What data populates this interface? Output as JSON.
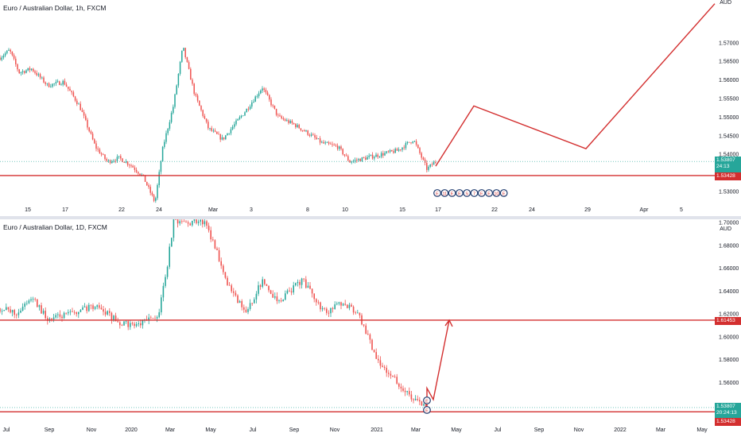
{
  "colors": {
    "up": "#26a69a",
    "down": "#ef5350",
    "line": "#d32f2f",
    "accent": "#26a69a",
    "text": "#131722"
  },
  "chart_data": [
    {
      "type": "line",
      "title": "Euro / Australian Dollar, 1h, FXCM",
      "unit": "AUD",
      "x_ticks": [
        "15",
        "17",
        "22",
        "24",
        "Mar",
        "3",
        "8",
        "10",
        "15",
        "17",
        "22",
        "24",
        "29",
        "Apr",
        "5"
      ],
      "y_ticks": [
        "1.57000",
        "1.56500",
        "1.56000",
        "1.55500",
        "1.55000",
        "1.54500",
        "1.54000",
        "1.53000"
      ],
      "ylim": [
        1.5255,
        1.5815
      ],
      "last_price": "1.53807",
      "countdown": "24:13",
      "level": "1.53428",
      "projection": [
        {
          "x": "17",
          "y": 1.5368
        },
        {
          "x": "19",
          "y": 1.553
        },
        {
          "x": "29",
          "y": 1.5415
        },
        {
          "x": "8 Apr",
          "y": 1.5805
        }
      ],
      "price_series": [
        {
          "x": "13",
          "y": 1.566
        },
        {
          "x": "14",
          "y": 1.568
        },
        {
          "x": "15",
          "y": 1.562
        },
        {
          "x": "16",
          "y": 1.563
        },
        {
          "x": "17",
          "y": 1.5585
        },
        {
          "x": "18",
          "y": 1.5595
        },
        {
          "x": "19",
          "y": 1.553
        },
        {
          "x": "20",
          "y": 1.542
        },
        {
          "x": "21",
          "y": 1.538
        },
        {
          "x": "22",
          "y": 1.539
        },
        {
          "x": "23",
          "y": 1.537
        },
        {
          "x": "24",
          "y": 1.534
        },
        {
          "x": "25",
          "y": 1.527
        },
        {
          "x": "26",
          "y": 1.542
        },
        {
          "x": "27",
          "y": 1.553
        },
        {
          "x": "28",
          "y": 1.569
        },
        {
          "x": "Mar",
          "y": 1.556
        },
        {
          "x": "2",
          "y": 1.547
        },
        {
          "x": "3",
          "y": 1.544
        },
        {
          "x": "4",
          "y": 1.548
        },
        {
          "x": "5",
          "y": 1.552
        },
        {
          "x": "6",
          "y": 1.558
        },
        {
          "x": "7",
          "y": 1.55
        },
        {
          "x": "8",
          "y": 1.548
        },
        {
          "x": "9",
          "y": 1.546
        },
        {
          "x": "10",
          "y": 1.543
        },
        {
          "x": "11",
          "y": 1.542
        },
        {
          "x": "12",
          "y": 1.538
        },
        {
          "x": "13",
          "y": 1.539
        },
        {
          "x": "14",
          "y": 1.54
        },
        {
          "x": "15",
          "y": 1.541
        },
        {
          "x": "16",
          "y": 1.544
        },
        {
          "x": "17",
          "y": 1.536
        },
        {
          "x": "17.5",
          "y": 1.5381
        }
      ]
    },
    {
      "type": "line",
      "title": "Euro / Australian Dollar, 1D, FXCM",
      "unit": "AUD",
      "x_ticks": [
        "Jul",
        "Sep",
        "Nov",
        "2020",
        "Mar",
        "May",
        "Jul",
        "Sep",
        "Nov",
        "2021",
        "Mar",
        "May",
        "Jul",
        "Sep",
        "Nov",
        "2022",
        "Mar",
        "May"
      ],
      "y_ticks": [
        "1.70000",
        "1.68000",
        "1.66000",
        "1.64000",
        "1.62000",
        "1.60000",
        "1.58000",
        "1.56000"
      ],
      "ylim": [
        1.522,
        1.7
      ],
      "last_price": "1.53807",
      "countdown": "20:24:13",
      "level_low": "1.53428",
      "level_high": "1.61453",
      "projection": [
        {
          "x": "Mar 2021",
          "y": 1.534
        },
        {
          "x": "Mar 2021",
          "y": 1.555
        },
        {
          "x": "Apr 2021",
          "y": 1.545
        },
        {
          "x": "Apr 2021",
          "y": 1.6145
        }
      ],
      "price_series": [
        {
          "x": "Jul 2019",
          "y": 1.625
        },
        {
          "x": "Aug 2019",
          "y": 1.62
        },
        {
          "x": "Aug 2019",
          "y": 1.635
        },
        {
          "x": "Sep 2019",
          "y": 1.615
        },
        {
          "x": "Oct 2019",
          "y": 1.62
        },
        {
          "x": "Nov 2019",
          "y": 1.628
        },
        {
          "x": "Dec 2019",
          "y": 1.612
        },
        {
          "x": "Jan 2020",
          "y": 1.61
        },
        {
          "x": "Feb 2020",
          "y": 1.62
        },
        {
          "x": "Feb 2020",
          "y": 1.67
        },
        {
          "x": "Mar 2020",
          "y": 1.7
        },
        {
          "x": "Apr 2020",
          "y": 1.7
        },
        {
          "x": "May 2020",
          "y": 1.68
        },
        {
          "x": "Jun 2020",
          "y": 1.64
        },
        {
          "x": "Jul 2020",
          "y": 1.62
        },
        {
          "x": "Aug 2020",
          "y": 1.65
        },
        {
          "x": "Sep 2020",
          "y": 1.63
        },
        {
          "x": "Oct 2020",
          "y": 1.65
        },
        {
          "x": "Nov 2020",
          "y": 1.62
        },
        {
          "x": "Dec 2020",
          "y": 1.63
        },
        {
          "x": "Dec 2020",
          "y": 1.62
        },
        {
          "x": "Jan 2021",
          "y": 1.58
        },
        {
          "x": "Feb 2021",
          "y": 1.56
        },
        {
          "x": "Feb 2021",
          "y": 1.545
        },
        {
          "x": "Mar 2021",
          "y": 1.5381
        }
      ]
    }
  ],
  "markers_1h": [
    "E",
    "11",
    "E",
    "E",
    "S",
    "7",
    "E",
    "E",
    "10",
    "E"
  ],
  "markers_1d": [
    "E",
    "E"
  ]
}
